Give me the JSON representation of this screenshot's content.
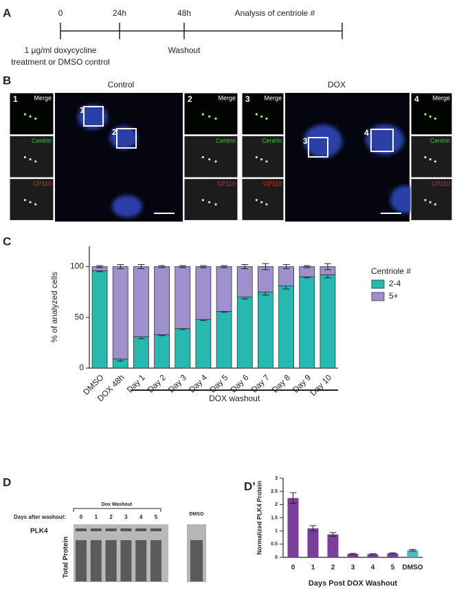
{
  "panel_a": {
    "label": "A",
    "timepoints": [
      "0",
      "24h",
      "48h"
    ],
    "analysis": "Analysis of centriole #",
    "treatment": [
      "1 µg/ml doxycycline",
      "treatment or DMSO control"
    ],
    "washout": "Washout"
  },
  "panel_b": {
    "label": "B",
    "groups": [
      {
        "title": "Control",
        "insets": [
          {
            "number": "1",
            "channels": [
              "Merge",
              "Centrin",
              "CP110"
            ]
          },
          {
            "number": "2",
            "channels": [
              "Merge",
              "Centrin",
              "CP110"
            ]
          }
        ]
      },
      {
        "title": "DOX",
        "insets": [
          {
            "number": "3",
            "channels": [
              "Merge",
              "Centrin",
              "CP110"
            ]
          },
          {
            "number": "4",
            "channels": [
              "Merge",
              "Centrin",
              "CP110"
            ]
          }
        ]
      }
    ]
  },
  "panel_d": {
    "label": "D",
    "header": "Dox Washout",
    "row_label": "Days after washout:",
    "lanes": [
      "0",
      "1",
      "2",
      "3",
      "4",
      "5"
    ],
    "control_lane": "DMSO",
    "bands": [
      "PLK4",
      "Total Protein"
    ]
  },
  "chart_data": [
    {
      "type": "bar",
      "stacked": true,
      "panel_label": "C",
      "ylabel": "% of analyzed cells",
      "categories": [
        "DMSO",
        "DOX 48h",
        "Day 1",
        "Day 2",
        "Day 3",
        "Day 4",
        "Day 5",
        "Day 6",
        "Day 7",
        "Day 8",
        "Day 9",
        "Day 10"
      ],
      "series": [
        {
          "name": "2-4",
          "color": "#27b8b0",
          "values": [
            96,
            9,
            31,
            33,
            39,
            48,
            56,
            70,
            75,
            81,
            90,
            92
          ],
          "errors": [
            1,
            2,
            2,
            1,
            1,
            1,
            1,
            2,
            3,
            3,
            1,
            3
          ]
        },
        {
          "name": "5+",
          "color": "#9d90cc",
          "values": [
            4,
            91,
            69,
            67,
            61,
            52,
            44,
            30,
            25,
            19,
            10,
            8
          ],
          "errors": [
            1,
            2,
            2,
            1,
            1,
            1,
            1,
            2,
            3,
            2,
            1,
            3
          ]
        }
      ],
      "ylim": [
        0,
        120
      ],
      "yticks": [
        0,
        50,
        100
      ],
      "legend_title": "Centriole #",
      "bracket": "DOX washout"
    },
    {
      "type": "bar",
      "panel_label": "D’",
      "ylabel": "Normalized PLK4 Protein",
      "xlabel": "Days Post DOX Washout",
      "categories": [
        "0",
        "1",
        "2",
        "3",
        "4",
        "5",
        "DMSO"
      ],
      "values": [
        2.25,
        1.1,
        0.87,
        0.13,
        0.12,
        0.15,
        0.27
      ],
      "errors": [
        0.2,
        0.1,
        0.07,
        0.02,
        0.02,
        0.02,
        0.03
      ],
      "colors": [
        "#7a3e9d",
        "#7a3e9d",
        "#7a3e9d",
        "#7a3e9d",
        "#7a3e9d",
        "#7a3e9d",
        "#4cb8c0"
      ],
      "ylim": [
        0,
        3
      ],
      "yticks": [
        0,
        0.5,
        1,
        1.5,
        2,
        2.5,
        3
      ]
    }
  ]
}
